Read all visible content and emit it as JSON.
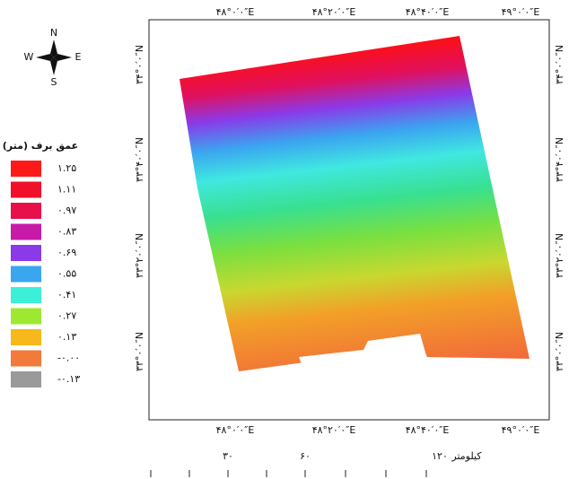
{
  "compass": {
    "north": "N",
    "east": "E",
    "south": "S",
    "west": "W"
  },
  "top_labels": [
    "۴۸°۰′۰″E",
    "۴۸°۲۰′۰″E",
    "۴۸°۴۰′۰″E",
    "۴۹°۰′۰″E"
  ],
  "bottom_labels": [
    "۴۸°۰′۰″E",
    "۴۸°۲۰′۰″E",
    "۴۸°۴۰′۰″E",
    "۴۹°۰′۰″E"
  ],
  "left_labels": [
    "۳۴°۰′۰″N",
    "۳۳°۴۰′۰″N",
    "۳۳°۲۰′۰″N",
    "۳۳°۰′۰″N"
  ],
  "right_labels": [
    "۳۴°۰′۰″N",
    "۳۳°۴۰′۰″N",
    "۳۳°۲۰′۰″N",
    "۳۳°۰′۰″N"
  ],
  "legend": {
    "title": "عمق برف (متر)",
    "items": [
      {
        "label": "۱.۲۵",
        "color": "#ff1a1a"
      },
      {
        "label": "۱.۱۱",
        "color": "#f0102a"
      },
      {
        "label": "۰.۹۷",
        "color": "#e8104a"
      },
      {
        "label": "۰.۸۳",
        "color": "#c81aa8"
      },
      {
        "label": "۰.۶۹",
        "color": "#8a3ae8"
      },
      {
        "label": "۰.۵۵",
        "color": "#3aa6f0"
      },
      {
        "label": "۰.۴۱",
        "color": "#3cf0d8"
      },
      {
        "label": "۰.۲۷",
        "color": "#9ee832"
      },
      {
        "label": "۰.۱۳",
        "color": "#f6b81a"
      },
      {
        "label": "-۰.۰۰",
        "color": "#f27a3a"
      },
      {
        "label": "-۰.۱۳",
        "color": "#9a9a9a"
      }
    ]
  },
  "scale": {
    "labels": [
      "۳۰",
      "۶۰",
      "۱۲۰"
    ],
    "unit": "کیلومتر"
  }
}
